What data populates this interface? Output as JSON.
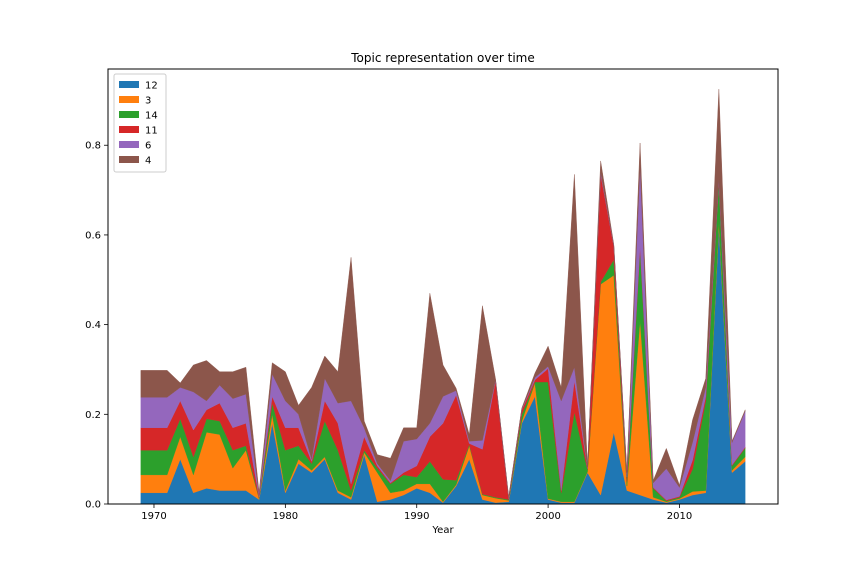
{
  "chart_data": {
    "type": "area",
    "title": "Topic representation over time",
    "xlabel": "Year",
    "ylabel": "",
    "xlim": [
      1966.5,
      2017.5
    ],
    "ylim": [
      0,
      0.97
    ],
    "x_ticks": [
      1970,
      1980,
      1990,
      2000,
      2010
    ],
    "y_ticks": [
      0.0,
      0.2,
      0.4,
      0.6,
      0.8
    ],
    "y_tick_labels": [
      "0.0",
      "0.2",
      "0.4",
      "0.6",
      "0.8"
    ],
    "stacked": true,
    "legend_position": "upper-left",
    "grid": false,
    "x": [
      1969,
      1970,
      1971,
      1972,
      1973,
      1974,
      1975,
      1976,
      1977,
      1978,
      1979,
      1980,
      1981,
      1982,
      1983,
      1984,
      1985,
      1986,
      1987,
      1988,
      1989,
      1990,
      1991,
      1992,
      1993,
      1994,
      1995,
      1996,
      1997,
      1998,
      1999,
      2000,
      2001,
      2002,
      2003,
      2004,
      2005,
      2006,
      2007,
      2008,
      2009,
      2010,
      2011,
      2012,
      2013,
      2014,
      2015
    ],
    "series": [
      {
        "name": "12",
        "color": "#1f77b4",
        "values": [
          0.025,
          0.025,
          0.025,
          0.1,
          0.025,
          0.035,
          0.03,
          0.03,
          0.03,
          0.01,
          0.18,
          0.025,
          0.09,
          0.07,
          0.1,
          0.025,
          0.01,
          0.11,
          0.005,
          0.01,
          0.02,
          0.035,
          0.025,
          0.003,
          0.04,
          0.1,
          0.01,
          0.003,
          0.005,
          0.18,
          0.24,
          0.01,
          0.003,
          0.003,
          0.07,
          0.02,
          0.16,
          0.03,
          0.02,
          0.01,
          0.003,
          0.01,
          0.02,
          0.025,
          0.62,
          0.07,
          0.095
        ]
      },
      {
        "name": "3",
        "color": "#ff7f0e",
        "values": [
          0.04,
          0.04,
          0.04,
          0.05,
          0.04,
          0.125,
          0.125,
          0.05,
          0.09,
          0.002,
          0.02,
          0.005,
          0.01,
          0.005,
          0.005,
          0.005,
          0.005,
          0.005,
          0.065,
          0.015,
          0.01,
          0.01,
          0.02,
          0.002,
          0.003,
          0.03,
          0.01,
          0.01,
          0.003,
          0.005,
          0.03,
          0.002,
          0.002,
          0.002,
          0.002,
          0.47,
          0.35,
          0.01,
          0.39,
          0.005,
          0.002,
          0.002,
          0.008,
          0.005,
          0.01,
          0.005,
          0.01
        ]
      },
      {
        "name": "14",
        "color": "#2ca02c",
        "values": [
          0.055,
          0.055,
          0.055,
          0.04,
          0.04,
          0.03,
          0.03,
          0.04,
          0.01,
          0.002,
          0.025,
          0.09,
          0.03,
          0.015,
          0.08,
          0.09,
          0.015,
          0.005,
          0.01,
          0.02,
          0.035,
          0.015,
          0.05,
          0.05,
          0.01,
          0.003,
          0.002,
          0.002,
          0.002,
          0.015,
          0.002,
          0.26,
          0.02,
          0.2,
          0.005,
          0.005,
          0.035,
          0.01,
          0.16,
          0.02,
          0.002,
          0.003,
          0.05,
          0.2,
          0.09,
          0.01,
          0.02
        ]
      },
      {
        "name": "11",
        "color": "#d62728",
        "values": [
          0.05,
          0.05,
          0.05,
          0.04,
          0.06,
          0.02,
          0.04,
          0.05,
          0.05,
          0.002,
          0.015,
          0.05,
          0.04,
          0.005,
          0.045,
          0.06,
          0.015,
          0.03,
          0.005,
          0.002,
          0.005,
          0.025,
          0.055,
          0.125,
          0.19,
          0.002,
          0.1,
          0.26,
          0.002,
          0.01,
          0.005,
          0.03,
          0.005,
          0.07,
          0.002,
          0.24,
          0.03,
          0.01,
          0.005,
          0.002,
          0.002,
          0.002,
          0.02,
          0.01,
          0.002,
          0.002,
          0.002
        ]
      },
      {
        "name": "6",
        "color": "#9467bd",
        "values": [
          0.068,
          0.068,
          0.068,
          0.03,
          0.085,
          0.02,
          0.04,
          0.065,
          0.065,
          0.005,
          0.05,
          0.06,
          0.03,
          0.005,
          0.05,
          0.045,
          0.185,
          0.02,
          0.005,
          0.005,
          0.07,
          0.06,
          0.03,
          0.06,
          0.01,
          0.005,
          0.02,
          0.002,
          0.002,
          0.002,
          0.005,
          0.005,
          0.2,
          0.03,
          0.002,
          0.005,
          0.002,
          0.01,
          0.18,
          0.01,
          0.07,
          0.02,
          0.04,
          0.02,
          0.003,
          0.05,
          0.08
        ]
      },
      {
        "name": "4",
        "color": "#8c564b",
        "values": [
          0.06,
          0.06,
          0.06,
          0.01,
          0.06,
          0.09,
          0.03,
          0.06,
          0.06,
          0.005,
          0.025,
          0.065,
          0.02,
          0.16,
          0.05,
          0.07,
          0.32,
          0.015,
          0.02,
          0.05,
          0.03,
          0.025,
          0.29,
          0.07,
          0.005,
          0.015,
          0.3,
          0.002,
          0.002,
          0.002,
          0.01,
          0.045,
          0.03,
          0.43,
          0.002,
          0.025,
          0.002,
          0.002,
          0.05,
          0.005,
          0.045,
          0.005,
          0.05,
          0.02,
          0.2,
          0.003,
          0.003
        ]
      }
    ]
  }
}
